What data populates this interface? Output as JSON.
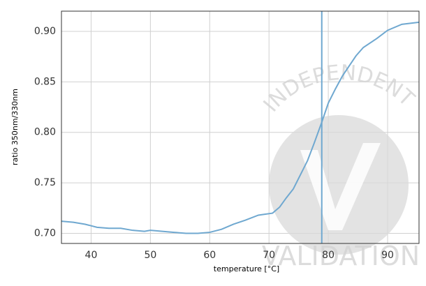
{
  "chart_data": {
    "type": "line",
    "xlabel": "temperature [°C]",
    "ylabel": "ratio 350nm/330nm",
    "x": [
      35,
      37,
      39,
      41,
      43,
      45,
      47,
      49,
      50,
      52,
      54,
      56,
      58,
      60,
      62,
      64,
      66,
      68.2,
      69.4,
      70.6,
      71.8,
      72.9,
      74.1,
      75.3,
      76.5,
      77.6,
      78.9,
      80,
      81.2,
      82.4,
      84.7,
      85.9,
      88.2,
      90,
      92.4,
      95.3
    ],
    "values": [
      0.712,
      0.711,
      0.709,
      0.706,
      0.705,
      0.705,
      0.703,
      0.702,
      0.703,
      0.702,
      0.701,
      0.7,
      0.7,
      0.701,
      0.704,
      0.709,
      0.713,
      0.718,
      0.719,
      0.72,
      0.726,
      0.735,
      0.744,
      0.758,
      0.772,
      0.789,
      0.81,
      0.829,
      0.843,
      0.856,
      0.876,
      0.884,
      0.893,
      0.901,
      0.907,
      0.909
    ],
    "color": "#6fa8d0",
    "vline": 78.9,
    "vline_color": "#6fa8d0",
    "xlim": [
      35,
      95.3
    ],
    "ylim": [
      0.69,
      0.92
    ],
    "xticks": [
      40,
      50,
      60,
      70,
      80,
      90
    ],
    "yticks": [
      {
        "value": 0.7,
        "label": "0.70"
      },
      0.75,
      {
        "value": 0.8,
        "label": "0.80"
      },
      0.85,
      {
        "value": 0.9,
        "label": "0.90"
      }
    ],
    "grid": true,
    "watermark": {
      "top": "INDEPENDENT",
      "bottom": "VALIDATION"
    }
  }
}
